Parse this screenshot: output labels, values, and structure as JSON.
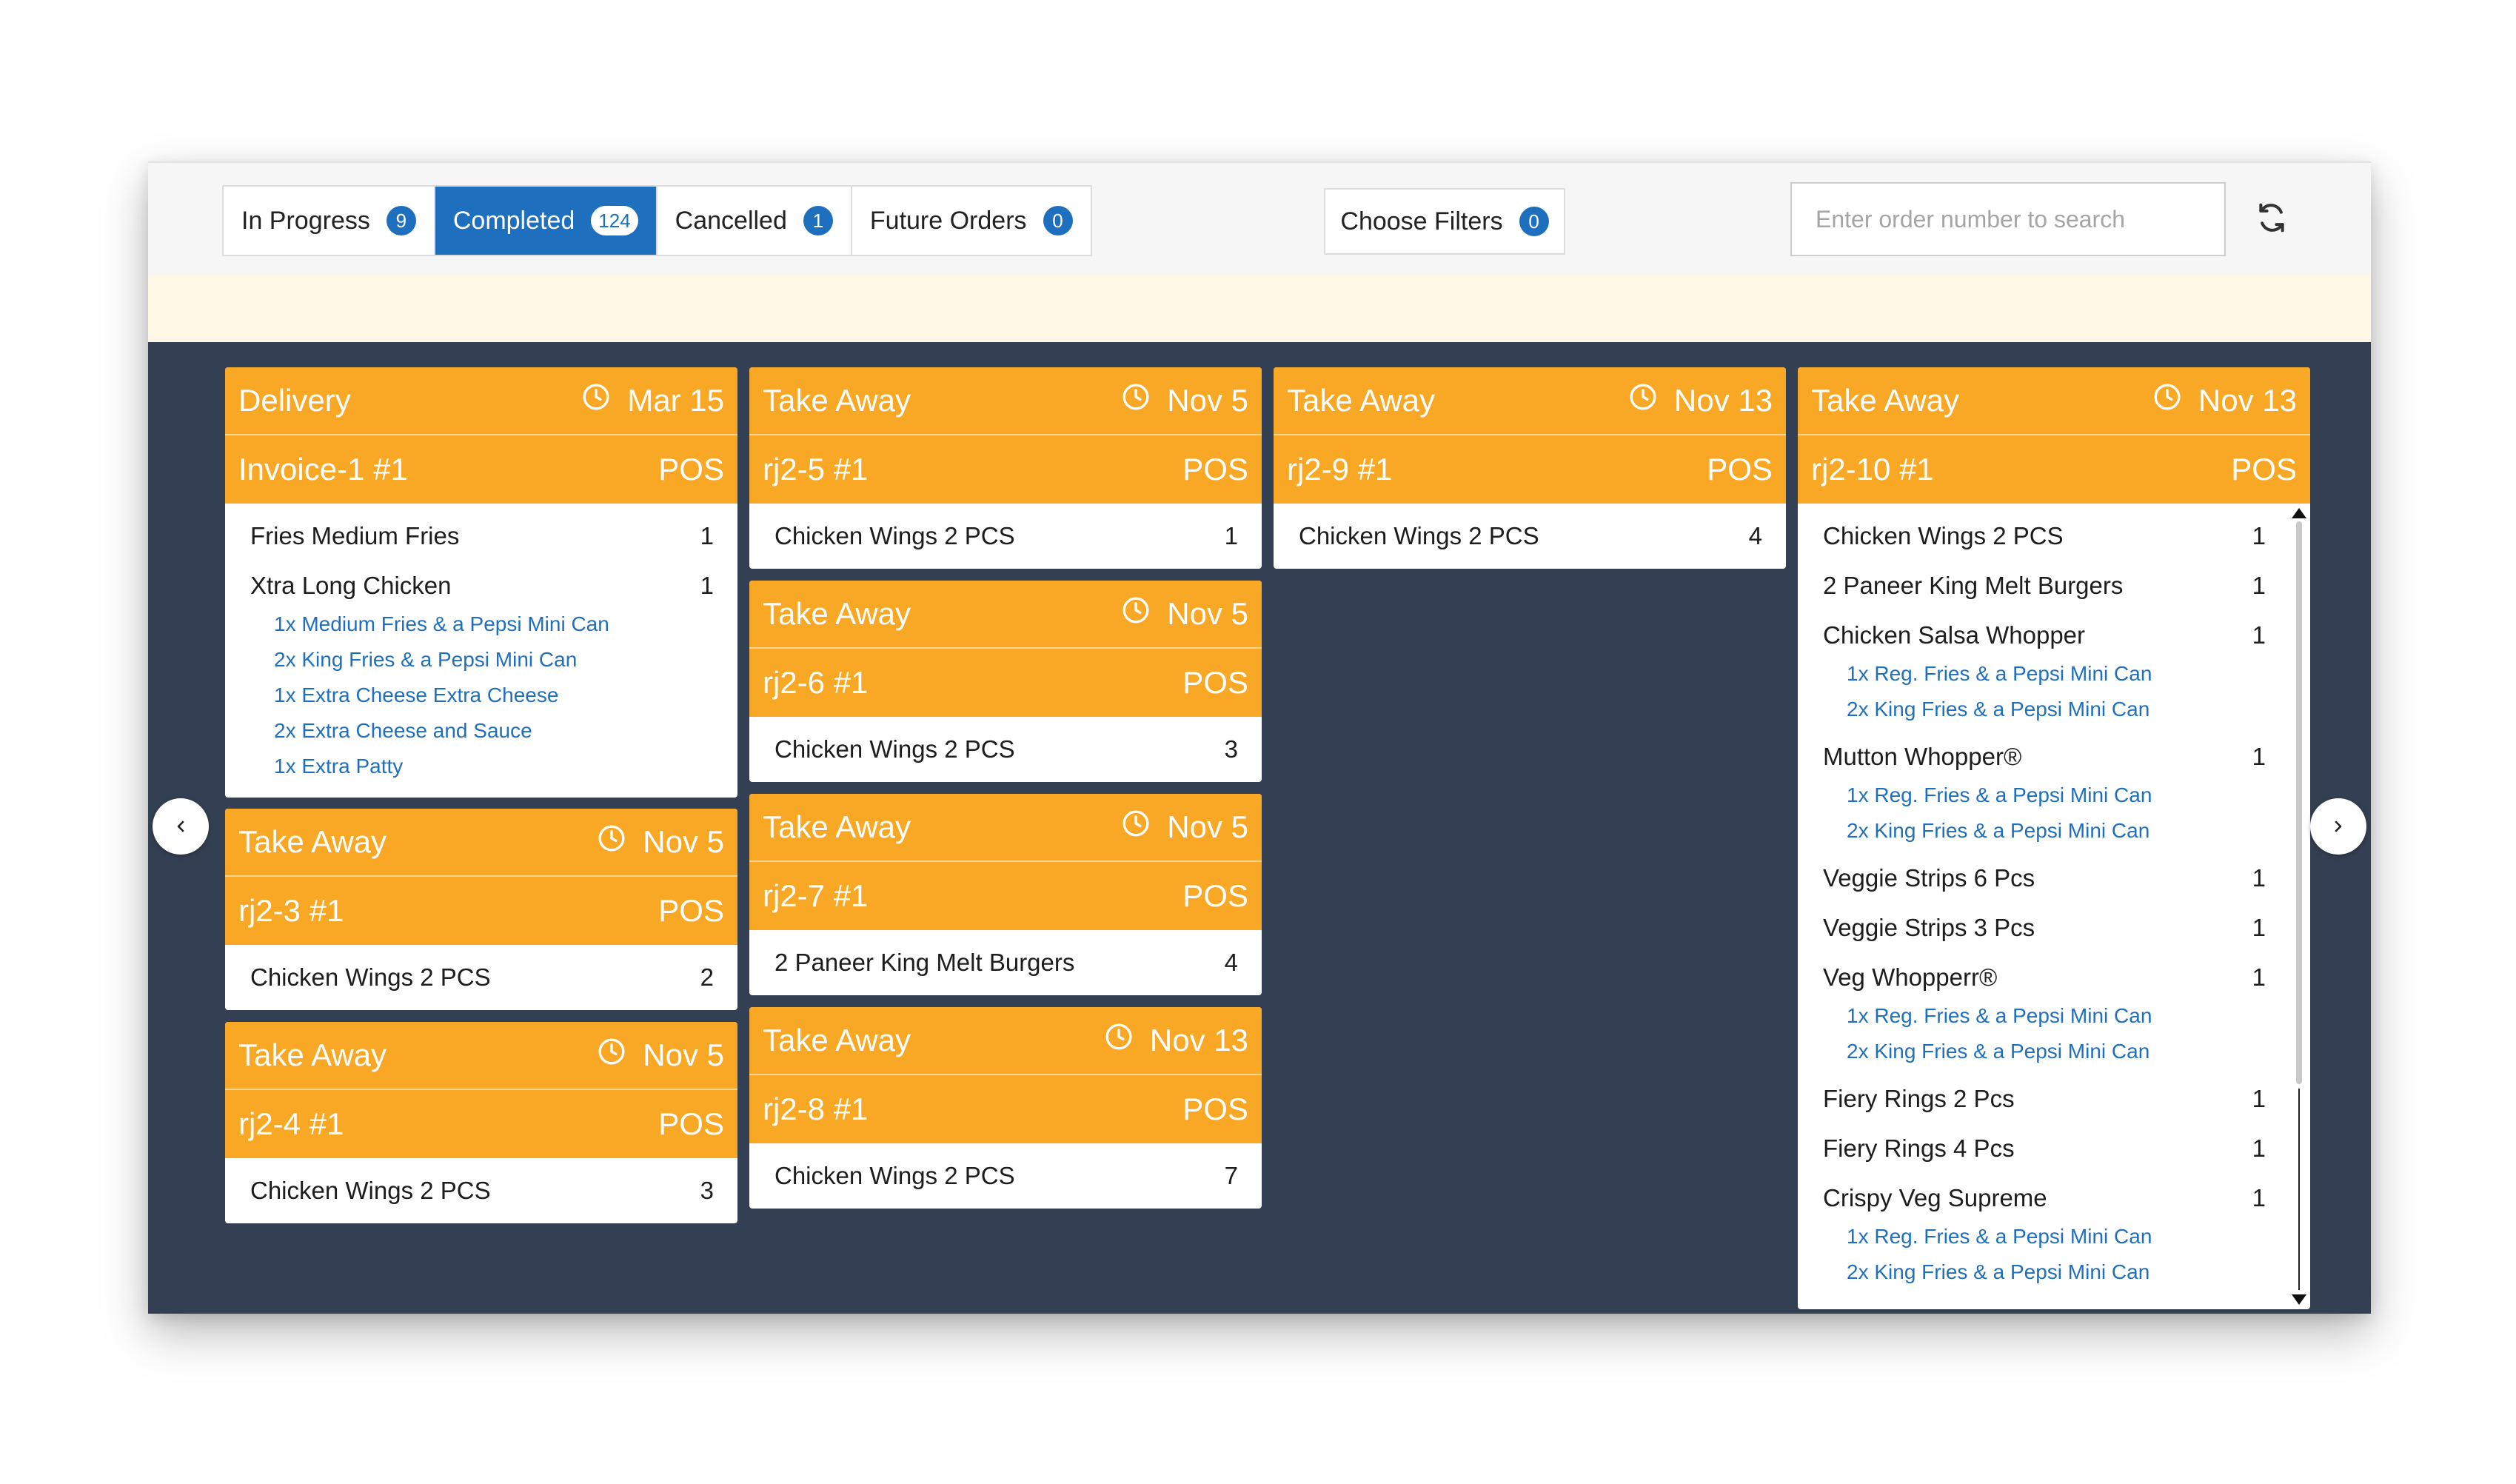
{
  "tabs": [
    {
      "label": "In Progress",
      "count": "9",
      "active": false
    },
    {
      "label": "Completed",
      "count": "124",
      "active": true
    },
    {
      "label": "Cancelled",
      "count": "1",
      "active": false
    },
    {
      "label": "Future Orders",
      "count": "0",
      "active": false
    }
  ],
  "filters": {
    "label": "Choose Filters",
    "count": "0"
  },
  "search": {
    "placeholder": "Enter order number to search",
    "value": ""
  },
  "icons": {
    "refresh": "refresh-icon",
    "clock": "clock-icon",
    "prev": "chevron-left-icon",
    "next": "chevron-right-icon"
  },
  "colors": {
    "accent": "#1f6fbf",
    "card_header": "#f9a826",
    "board": "#333f52",
    "modifier_text": "#1f6fbf",
    "notice": "#fff8e6"
  },
  "orders": [
    {
      "type": "Delivery",
      "date": "Mar 15",
      "id": "Invoice-1 #1",
      "source": "POS",
      "items": [
        {
          "name": "Fries Medium Fries",
          "qty": "1",
          "mods": []
        },
        {
          "name": "Xtra Long Chicken",
          "qty": "1",
          "mods": [
            "1x Medium Fries & a Pepsi Mini Can",
            "2x King Fries & a Pepsi Mini Can",
            "1x Extra Cheese Extra Cheese",
            "2x Extra Cheese and Sauce",
            "1x Extra Patty"
          ]
        }
      ]
    },
    {
      "type": "Take Away",
      "date": "Nov 5",
      "id": "rj2-3 #1",
      "source": "POS",
      "items": [
        {
          "name": "Chicken Wings 2 PCS",
          "qty": "2",
          "mods": []
        }
      ]
    },
    {
      "type": "Take Away",
      "date": "Nov 5",
      "id": "rj2-4 #1",
      "source": "POS",
      "items": [
        {
          "name": "Chicken Wings 2 PCS",
          "qty": "3",
          "mods": []
        }
      ]
    },
    {
      "type": "Take Away",
      "date": "Nov 5",
      "id": "rj2-5 #1",
      "source": "POS",
      "items": [
        {
          "name": "Chicken Wings 2 PCS",
          "qty": "1",
          "mods": []
        }
      ]
    },
    {
      "type": "Take Away",
      "date": "Nov 5",
      "id": "rj2-6 #1",
      "source": "POS",
      "items": [
        {
          "name": "Chicken Wings 2 PCS",
          "qty": "3",
          "mods": []
        }
      ]
    },
    {
      "type": "Take Away",
      "date": "Nov 5",
      "id": "rj2-7 #1",
      "source": "POS",
      "items": [
        {
          "name": "2 Paneer King Melt Burgers",
          "qty": "4",
          "mods": []
        }
      ]
    },
    {
      "type": "Take Away",
      "date": "Nov 13",
      "id": "rj2-8 #1",
      "source": "POS",
      "items": [
        {
          "name": "Chicken Wings 2 PCS",
          "qty": "7",
          "mods": []
        }
      ]
    },
    {
      "type": "Take Away",
      "date": "Nov 13",
      "id": "rj2-9 #1",
      "source": "POS",
      "items": [
        {
          "name": "Chicken Wings 2 PCS",
          "qty": "4",
          "mods": []
        }
      ]
    },
    {
      "type": "Take Away",
      "date": "Nov 13",
      "id": "rj2-10 #1",
      "source": "POS",
      "items": [
        {
          "name": "Chicken Wings 2 PCS",
          "qty": "1",
          "mods": []
        },
        {
          "name": "2 Paneer King Melt Burgers",
          "qty": "1",
          "mods": []
        },
        {
          "name": "Chicken Salsa Whopper",
          "qty": "1",
          "mods": [
            "1x Reg. Fries & a Pepsi Mini Can",
            "2x King Fries & a Pepsi Mini Can"
          ]
        },
        {
          "name": "Mutton Whopper®",
          "qty": "1",
          "mods": [
            "1x Reg. Fries & a Pepsi Mini Can",
            "2x King Fries & a Pepsi Mini Can"
          ]
        },
        {
          "name": "Veggie Strips 6 Pcs",
          "qty": "1",
          "mods": []
        },
        {
          "name": "Veggie Strips 3 Pcs",
          "qty": "1",
          "mods": []
        },
        {
          "name": "Veg Whopperr®",
          "qty": "1",
          "mods": [
            "1x Reg. Fries & a Pepsi Mini Can",
            "2x King Fries & a Pepsi Mini Can"
          ]
        },
        {
          "name": "Fiery Rings 2 Pcs",
          "qty": "1",
          "mods": []
        },
        {
          "name": "Fiery Rings 4 Pcs",
          "qty": "1",
          "mods": []
        },
        {
          "name": "Crispy Veg Supreme",
          "qty": "1",
          "mods": [
            "1x Reg. Fries & a Pepsi Mini Can",
            "2x King Fries & a Pepsi Mini Can"
          ]
        }
      ]
    }
  ]
}
